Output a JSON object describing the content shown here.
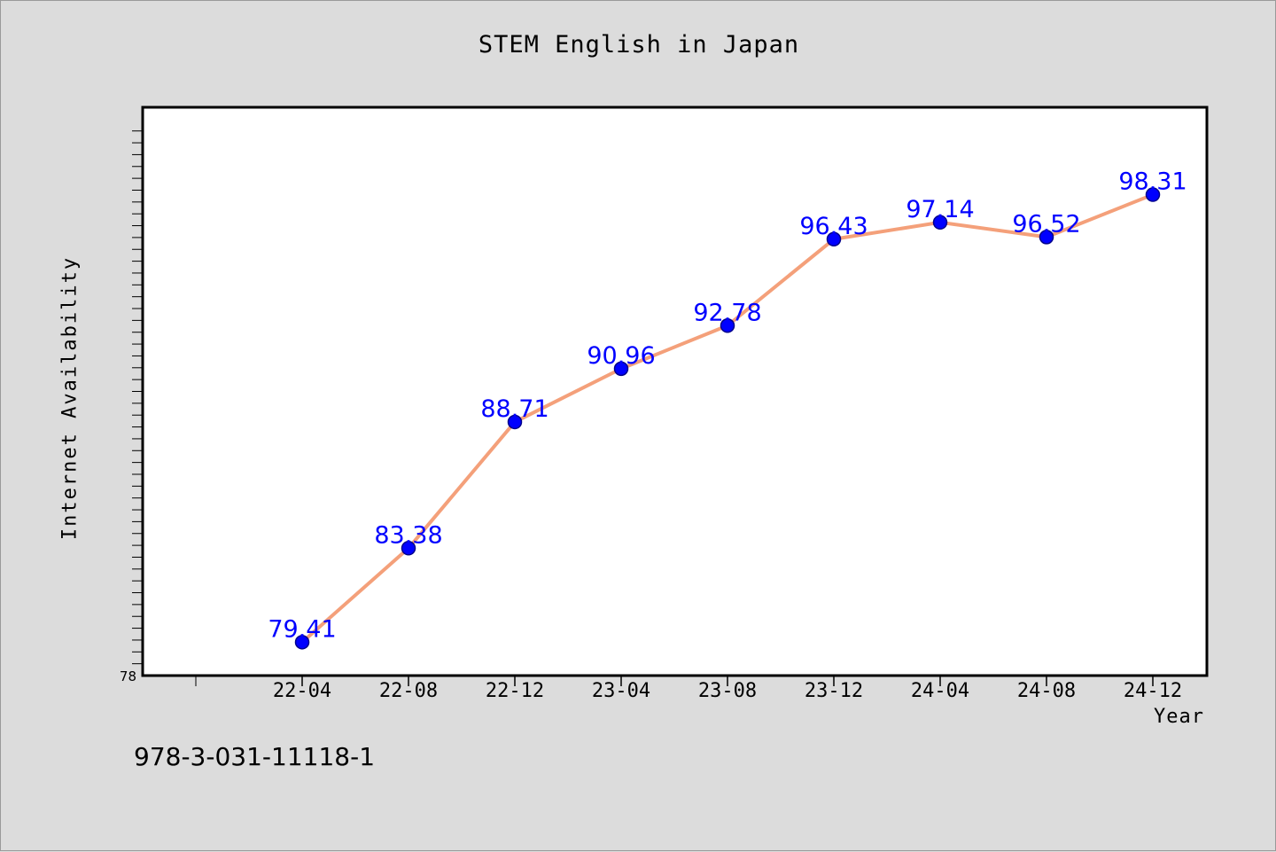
{
  "chart_data": {
    "type": "line",
    "title": "STEM English in Japan",
    "xlabel": "Year",
    "ylabel": "Internet Availability",
    "categories": [
      "22-04",
      "22-08",
      "22-12",
      "23-04",
      "23-08",
      "23-12",
      "24-04",
      "24-08",
      "24-12"
    ],
    "series": [
      {
        "values": [
          79.41,
          83.38,
          88.71,
          90.96,
          92.78,
          96.43,
          97.14,
          96.52,
          98.31
        ]
      }
    ],
    "data_labels": [
      "79.41",
      "83.38",
      "88.71",
      "90.96",
      "92.78",
      "96.43",
      "97.14",
      "96.52",
      "98.31"
    ],
    "ylim": [
      78,
      102
    ],
    "y_tick_labels": [
      "78"
    ],
    "grid": false,
    "legend": "none",
    "colors": {
      "line": "#f4a07a",
      "marker": "#0000ff",
      "marker_edge": "#00008b",
      "data_label": "#0000ff",
      "plot_background": "#ffffff",
      "figure_background": "#dcdcdc"
    }
  },
  "footer": {
    "code": "978-3-031-11118-1"
  }
}
